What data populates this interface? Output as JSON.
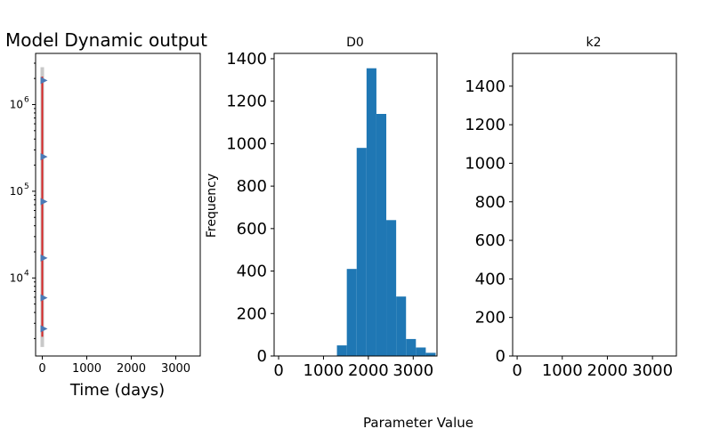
{
  "figure": {
    "supxlabel": "Parameter Value"
  },
  "chart_data": [
    {
      "type": "line",
      "title": "Model Dynamic output",
      "xlabel": "Time (days)",
      "ylabel": "",
      "xlim": [
        -150,
        3550
      ],
      "ylim_log10": [
        3.1,
        6.59
      ],
      "yscale": "log",
      "xticks": [
        0,
        1000,
        2000,
        3000
      ],
      "xtick_labels": [
        "0",
        "1000",
        "2000",
        "3000"
      ],
      "yticks_log10": [
        4,
        5,
        6
      ],
      "ytick_labels": [
        [
          "10",
          "4"
        ],
        [
          "10",
          "5"
        ],
        [
          "10",
          "6"
        ]
      ],
      "series": [
        {
          "style": "markers",
          "marker": "triangle-right",
          "color": "#4a79b5",
          "x": [
            0,
            0,
            0,
            0,
            0,
            0
          ],
          "y": [
            2600,
            5900,
            17000,
            76000,
            250000,
            1900000
          ]
        },
        {
          "style": "line",
          "color": "#d62728",
          "x": [
            0,
            0
          ],
          "y": [
            2100,
            2100000
          ]
        }
      ],
      "band": {
        "color": "#c8c8c8",
        "x": [
          0,
          0
        ],
        "y": [
          1600,
          2700000
        ]
      }
    },
    {
      "type": "bar",
      "title": "D0",
      "xlabel": "",
      "ylabel": "Frequency",
      "xlim": [
        -100,
        3530
      ],
      "ylim": [
        0,
        1425
      ],
      "xticks": [
        0,
        1000,
        2000,
        3000
      ],
      "xtick_labels": [
        "0",
        "1000",
        "2000",
        "3000"
      ],
      "yticks": [
        0,
        200,
        400,
        600,
        800,
        1000,
        1200,
        1400
      ],
      "ytick_labels": [
        "0",
        "200",
        "400",
        "600",
        "800",
        "1000",
        "1200",
        "1400"
      ],
      "color": "#1f77b4",
      "bin_edges": [
        1300,
        1520,
        1740,
        1960,
        2180,
        2400,
        2620,
        2840,
        3060,
        3280,
        3500
      ],
      "values": [
        50,
        410,
        980,
        1355,
        1140,
        640,
        280,
        80,
        40,
        15
      ]
    },
    {
      "type": "bar",
      "title": "k2",
      "xlabel": "",
      "ylabel": "",
      "xlim": [
        -100,
        3530
      ],
      "ylim": [
        0,
        1570
      ],
      "xticks": [
        0,
        1000,
        2000,
        3000
      ],
      "xtick_labels": [
        "0",
        "1000",
        "2000",
        "3000"
      ],
      "yticks": [
        0,
        200,
        400,
        600,
        800,
        1000,
        1200,
        1400
      ],
      "ytick_labels": [
        "0",
        "200",
        "400",
        "600",
        "800",
        "1000",
        "1200",
        "1400"
      ],
      "color": "#1f77b4",
      "bin_edges": [],
      "values": []
    }
  ]
}
